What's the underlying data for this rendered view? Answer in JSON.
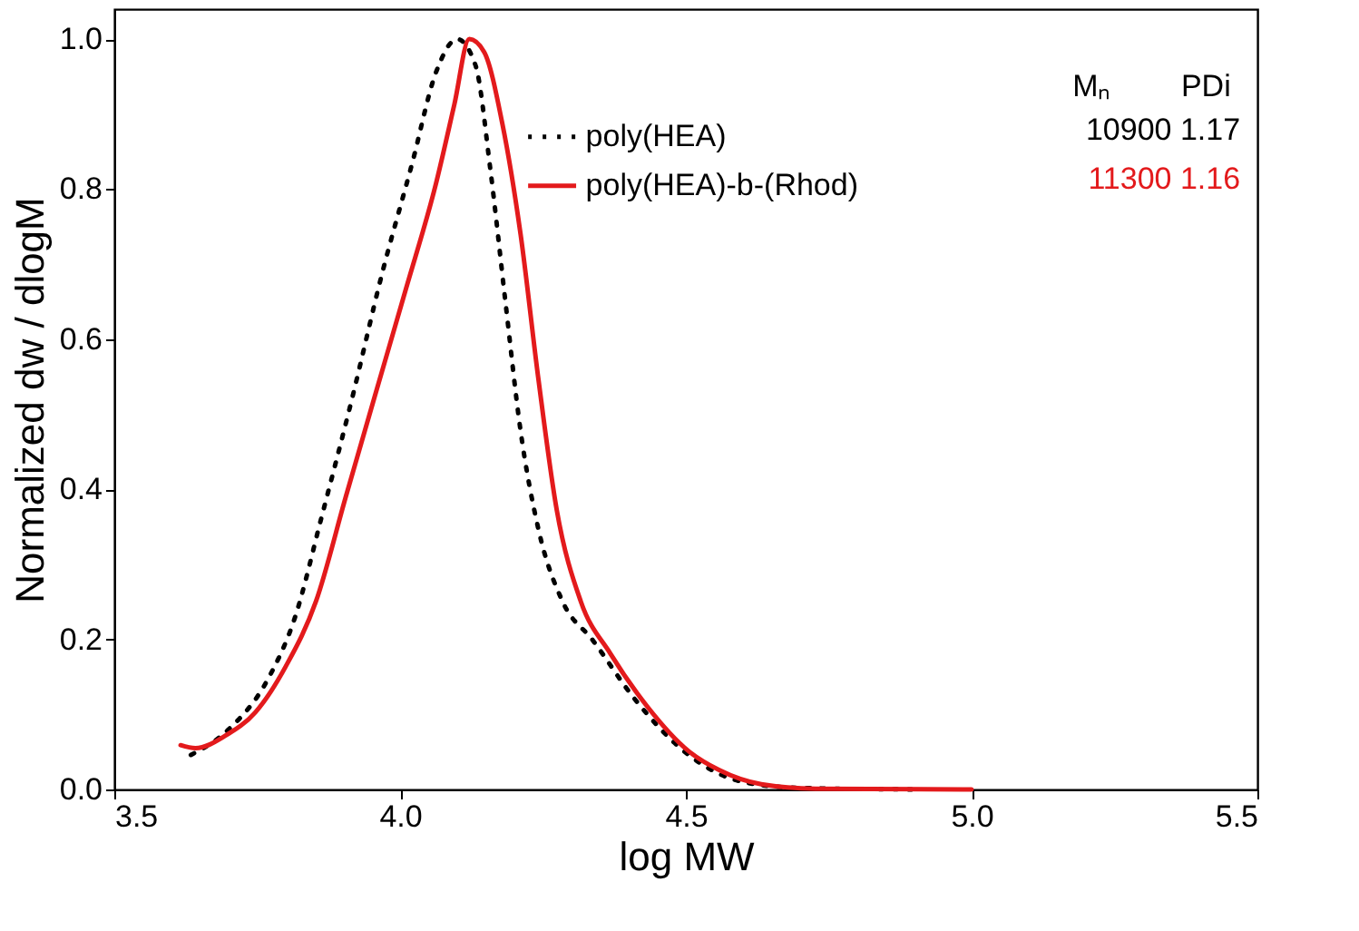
{
  "chart_data": {
    "type": "line",
    "xlabel": "log MW",
    "ylabel": "Normalized dw / dlogM",
    "xlim": [
      3.5,
      5.5
    ],
    "xticks": [
      {
        "value": 3.5,
        "label": "3.5"
      },
      {
        "value": 4.0,
        "label": "4.0"
      },
      {
        "value": 4.5,
        "label": "4.5"
      },
      {
        "value": 5.0,
        "label": "5.0"
      },
      {
        "value": 5.5,
        "label": "5.5"
      }
    ],
    "ylim": [
      0,
      1.04
    ],
    "yticks": [
      {
        "value": 0,
        "label": "0.0"
      },
      {
        "value": 0.2,
        "label": "0.2"
      },
      {
        "value": 0.4,
        "label": "0.4"
      },
      {
        "value": 0.6,
        "label": "0.6"
      },
      {
        "value": 0.8,
        "label": "0.8"
      },
      {
        "value": 1.0,
        "label": "1.0"
      }
    ],
    "grid": false,
    "legend": "top right",
    "marker": "none",
    "series": [
      {
        "name": "poly(HEA)",
        "color": "#000000",
        "line_style": "dotted",
        "x": [
          3.634,
          3.7,
          3.768,
          3.816,
          3.863,
          3.916,
          3.968,
          4.021,
          4.063,
          4.1,
          4.132,
          4.158,
          4.184,
          4.211,
          4.242,
          4.284,
          4.337,
          4.411,
          4.505,
          4.6,
          4.7,
          4.9
        ],
        "values": [
          0.046,
          0.08,
          0.146,
          0.229,
          0.364,
          0.521,
          0.686,
          0.834,
          0.956,
          1.0,
          0.965,
          0.826,
          0.652,
          0.477,
          0.347,
          0.251,
          0.199,
          0.12,
          0.046,
          0.01,
          0.002,
          0.0
        ]
      },
      {
        "name": "poly(HEA)-b-(Rhod)",
        "color": "#e31a1c",
        "line_style": "solid",
        "x": [
          3.616,
          3.642,
          3.695,
          3.747,
          3.8,
          3.853,
          3.905,
          3.958,
          4.011,
          4.063,
          4.095,
          4.121,
          4.147,
          4.179,
          4.211,
          4.242,
          4.274,
          4.316,
          4.368,
          4.432,
          4.505,
          4.558,
          4.632,
          4.727,
          5.0
        ],
        "values": [
          0.059,
          0.055,
          0.072,
          0.103,
          0.164,
          0.251,
          0.39,
          0.53,
          0.669,
          0.808,
          0.913,
          1.0,
          0.983,
          0.887,
          0.739,
          0.547,
          0.373,
          0.251,
          0.181,
          0.111,
          0.051,
          0.026,
          0.007,
          0.001,
          0.0
        ]
      }
    ],
    "annotations": [
      "Mₙ",
      "PDi",
      "10900 1.17",
      "11300 1.16"
    ]
  }
}
